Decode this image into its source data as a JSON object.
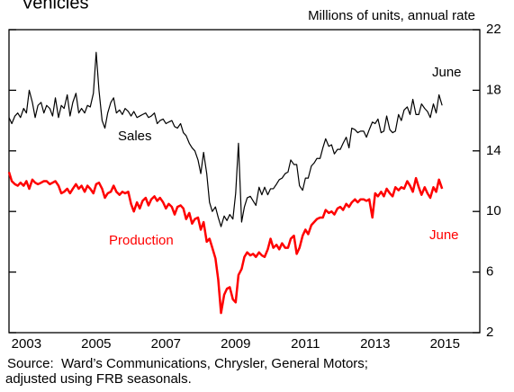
{
  "chart_data": {
    "type": "line",
    "title": "Vehicles",
    "y_label": "Millions of units, annual rate",
    "annotations": [
      "June",
      "June"
    ],
    "source": [
      "Source:  Ward’s Communications, Chrysler, General Motors;",
      "adjusted using FRB seasonals."
    ],
    "xlim": [
      2003,
      2016.5
    ],
    "xticks": [
      {
        "value": 2003.5,
        "label": "2003"
      },
      {
        "value": 2005.5,
        "label": "2005"
      },
      {
        "value": 2007.5,
        "label": "2007"
      },
      {
        "value": 2009.5,
        "label": "2009"
      },
      {
        "value": 2011.5,
        "label": "2011"
      },
      {
        "value": 2013.5,
        "label": "2013"
      },
      {
        "value": 2015.5,
        "label": "2015"
      }
    ],
    "ylim": [
      2,
      22
    ],
    "yticks": [
      2,
      6,
      10,
      14,
      18,
      22
    ],
    "x": [
      2003.0,
      2003.08,
      2003.17,
      2003.25,
      2003.33,
      2003.42,
      2003.5,
      2003.58,
      2003.67,
      2003.75,
      2003.83,
      2003.92,
      2004.0,
      2004.08,
      2004.17,
      2004.25,
      2004.33,
      2004.42,
      2004.5,
      2004.58,
      2004.67,
      2004.75,
      2004.83,
      2004.92,
      2005.0,
      2005.08,
      2005.17,
      2005.25,
      2005.33,
      2005.42,
      2005.5,
      2005.58,
      2005.67,
      2005.75,
      2005.83,
      2005.92,
      2006.0,
      2006.08,
      2006.17,
      2006.25,
      2006.33,
      2006.42,
      2006.5,
      2006.58,
      2006.67,
      2006.75,
      2006.83,
      2006.92,
      2007.0,
      2007.08,
      2007.17,
      2007.25,
      2007.33,
      2007.42,
      2007.5,
      2007.58,
      2007.67,
      2007.75,
      2007.83,
      2007.92,
      2008.0,
      2008.08,
      2008.17,
      2008.25,
      2008.33,
      2008.42,
      2008.5,
      2008.58,
      2008.67,
      2008.75,
      2008.83,
      2008.92,
      2009.0,
      2009.08,
      2009.17,
      2009.25,
      2009.33,
      2009.42,
      2009.5,
      2009.58,
      2009.67,
      2009.75,
      2009.83,
      2009.92,
      2010.0,
      2010.08,
      2010.17,
      2010.25,
      2010.33,
      2010.42,
      2010.5,
      2010.58,
      2010.67,
      2010.75,
      2010.83,
      2010.92,
      2011.0,
      2011.08,
      2011.17,
      2011.25,
      2011.33,
      2011.42,
      2011.5,
      2011.58,
      2011.67,
      2011.75,
      2011.83,
      2011.92,
      2012.0,
      2012.08,
      2012.17,
      2012.25,
      2012.33,
      2012.42,
      2012.5,
      2012.58,
      2012.67,
      2012.75,
      2012.83,
      2012.92,
      2013.0,
      2013.08,
      2013.17,
      2013.25,
      2013.33,
      2013.42,
      2013.5,
      2013.58,
      2013.67,
      2013.75,
      2013.83,
      2013.92,
      2014.0,
      2014.08,
      2014.17,
      2014.25,
      2014.33,
      2014.42,
      2014.5,
      2014.58,
      2014.67,
      2014.75,
      2014.83,
      2014.92,
      2015.0,
      2015.08,
      2015.17,
      2015.25,
      2015.33,
      2015.42
    ],
    "series": [
      {
        "name": "Sales",
        "color": "#000000",
        "values": [
          16.2,
          15.8,
          16.3,
          16.5,
          16.2,
          16.8,
          16.5,
          18.0,
          17.2,
          16.2,
          17.0,
          17.2,
          16.5,
          17.0,
          16.8,
          16.3,
          17.5,
          16.2,
          17.0,
          16.8,
          17.7,
          16.3,
          17.2,
          17.8,
          16.5,
          16.8,
          16.5,
          17.0,
          16.9,
          17.8,
          20.5,
          18.0,
          16.0,
          15.5,
          16.5,
          17.2,
          17.5,
          16.5,
          16.7,
          16.4,
          16.8,
          16.6,
          16.3,
          16.6,
          16.2,
          16.3,
          16.4,
          16.5,
          16.2,
          16.3,
          16.5,
          15.8,
          16.0,
          16.1,
          15.8,
          15.9,
          16.0,
          15.6,
          15.5,
          15.8,
          15.2,
          15.0,
          14.5,
          14.2,
          14.0,
          13.4,
          12.5,
          13.9,
          12.5,
          10.6,
          10.0,
          10.3,
          9.6,
          9.0,
          9.7,
          9.4,
          9.8,
          9.5,
          11.2,
          14.5,
          9.3,
          10.3,
          10.9,
          11.0,
          10.7,
          10.4,
          11.6,
          11.1,
          11.6,
          11.1,
          11.5,
          11.5,
          11.8,
          12.1,
          12.2,
          12.5,
          12.6,
          13.4,
          13.1,
          13.1,
          11.7,
          11.4,
          12.2,
          12.2,
          13.0,
          13.2,
          13.5,
          13.5,
          14.2,
          14.8,
          14.3,
          14.4,
          13.8,
          14.1,
          14.1,
          14.5,
          14.9,
          14.2,
          15.5,
          15.4,
          15.2,
          15.3,
          15.3,
          14.9,
          15.4,
          15.9,
          15.8,
          16.1,
          15.2,
          15.3,
          16.3,
          15.4,
          15.2,
          15.3,
          16.4,
          16.0,
          16.7,
          16.9,
          16.4,
          17.4,
          16.4,
          16.4,
          17.1,
          16.8,
          16.6,
          16.2,
          17.1,
          16.5,
          17.7,
          17.0
        ]
      },
      {
        "name": "Production",
        "color": "#ff0000",
        "values": [
          12.6,
          12.0,
          11.8,
          11.7,
          11.9,
          11.7,
          12.0,
          11.5,
          12.1,
          11.9,
          11.8,
          11.9,
          12.0,
          12.0,
          11.8,
          11.9,
          12.0,
          11.7,
          11.2,
          11.3,
          11.5,
          11.2,
          11.5,
          11.8,
          11.5,
          11.7,
          11.3,
          11.7,
          11.5,
          11.2,
          11.8,
          11.9,
          11.5,
          10.9,
          11.2,
          11.3,
          11.7,
          11.3,
          11.1,
          11.3,
          11.2,
          11.3,
          10.5,
          10.0,
          10.6,
          10.2,
          10.7,
          10.9,
          10.4,
          10.8,
          11.0,
          10.7,
          10.9,
          10.6,
          10.2,
          10.5,
          10.3,
          9.8,
          10.3,
          10.4,
          10.2,
          9.5,
          9.9,
          9.2,
          9.5,
          9.6,
          8.8,
          9.3,
          8.0,
          8.2,
          7.6,
          6.9,
          5.5,
          3.3,
          4.5,
          4.9,
          5.0,
          4.2,
          4.0,
          5.8,
          6.2,
          7.0,
          7.3,
          7.1,
          7.2,
          7.0,
          7.3,
          7.1,
          7.0,
          7.5,
          8.2,
          7.6,
          7.8,
          7.5,
          7.9,
          7.6,
          7.6,
          8.2,
          8.4,
          7.2,
          7.6,
          8.4,
          8.8,
          8.5,
          9.1,
          9.3,
          9.5,
          9.6,
          9.6,
          10.1,
          9.9,
          10.0,
          9.8,
          10.2,
          10.3,
          10.1,
          10.5,
          10.3,
          10.6,
          10.8,
          10.6,
          10.8,
          10.8,
          10.7,
          10.8,
          9.6,
          11.2,
          11.0,
          11.3,
          11.0,
          11.5,
          11.2,
          11.0,
          11.6,
          11.4,
          11.6,
          11.5,
          12.0,
          11.7,
          11.3,
          12.2,
          11.6,
          11.1,
          11.6,
          11.2,
          10.9,
          11.6,
          11.3,
          12.1,
          11.5
        ]
      }
    ]
  }
}
